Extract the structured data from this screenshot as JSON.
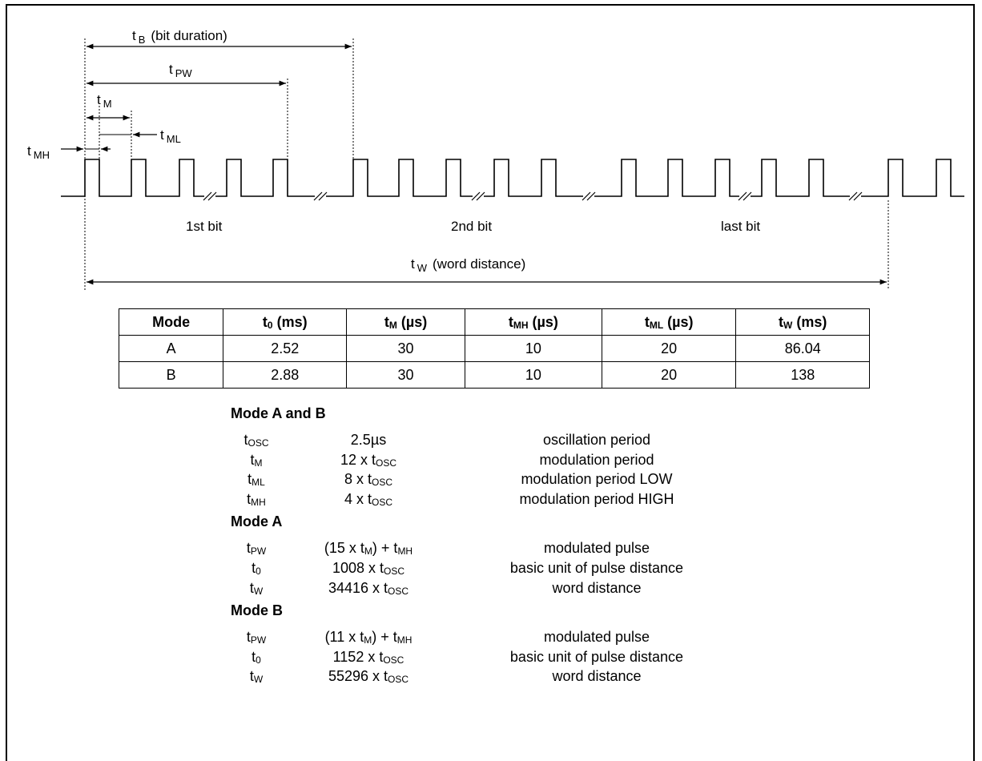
{
  "diagram": {
    "t_b": "t",
    "t_b_sub": "B",
    "t_b_desc": "(bit duration)",
    "t_pw": "t",
    "t_pw_sub": "PW",
    "t_m": "t",
    "t_m_sub": "M",
    "t_ml": "t",
    "t_ml_sub": "ML",
    "t_mh": "t",
    "t_mh_sub": "MH",
    "bit1": "1st bit",
    "bit2": "2nd bit",
    "bitlast": "last bit",
    "t_w": "t",
    "t_w_sub": "W",
    "t_w_desc": "(word distance)"
  },
  "table": {
    "headers": [
      {
        "t": "Mode",
        "s": "",
        "u": ""
      },
      {
        "t": "t",
        "s": "0",
        "u": " (ms)"
      },
      {
        "t": "t",
        "s": "M",
        "u": " (µs)"
      },
      {
        "t": "t",
        "s": "MH",
        "u": " (µs)"
      },
      {
        "t": "t",
        "s": "ML",
        "u": " (µs)"
      },
      {
        "t": "t",
        "s": "W",
        "u": " (ms)"
      }
    ],
    "rows": [
      [
        "A",
        "2.52",
        "30",
        "10",
        "20",
        "86.04"
      ],
      [
        "B",
        "2.88",
        "30",
        "10",
        "20",
        "138"
      ]
    ]
  },
  "definitions": [
    {
      "title": "Mode A and B",
      "rows": [
        {
          "sym": [
            "t",
            "OSC"
          ],
          "val": [
            [
              "2.5µs",
              ""
            ]
          ],
          "desc": "oscillation period"
        },
        {
          "sym": [
            "t",
            "M"
          ],
          "val": [
            [
              "12 x t",
              "OSC"
            ]
          ],
          "desc": "modulation period"
        },
        {
          "sym": [
            "t",
            "ML"
          ],
          "val": [
            [
              "8 x t",
              "OSC"
            ]
          ],
          "desc": "modulation period LOW"
        },
        {
          "sym": [
            "t",
            "MH"
          ],
          "val": [
            [
              "4 x t",
              "OSC"
            ]
          ],
          "desc": "modulation period HIGH"
        }
      ]
    },
    {
      "title": "Mode A",
      "rows": [
        {
          "sym": [
            "t",
            "PW"
          ],
          "val": [
            [
              "(15 x t",
              "M"
            ],
            [
              ") + t",
              "MH"
            ]
          ],
          "desc": "modulated pulse"
        },
        {
          "sym": [
            "t",
            "0"
          ],
          "val": [
            [
              "1008 x t",
              "OSC"
            ]
          ],
          "desc": "basic unit of pulse distance"
        },
        {
          "sym": [
            "t",
            "W"
          ],
          "val": [
            [
              "34416 x t",
              "OSC"
            ]
          ],
          "desc": "word distance"
        }
      ]
    },
    {
      "title": "Mode B",
      "rows": [
        {
          "sym": [
            "t",
            "PW"
          ],
          "val": [
            [
              "(11 x t",
              "M"
            ],
            [
              ") + t",
              "MH"
            ]
          ],
          "desc": "modulated pulse"
        },
        {
          "sym": [
            "t",
            "0"
          ],
          "val": [
            [
              "1152 x t",
              "OSC"
            ]
          ],
          "desc": "basic unit of pulse distance"
        },
        {
          "sym": [
            "t",
            "W"
          ],
          "val": [
            [
              "55296 x t",
              "OSC"
            ]
          ],
          "desc": "word distance"
        }
      ]
    }
  ]
}
